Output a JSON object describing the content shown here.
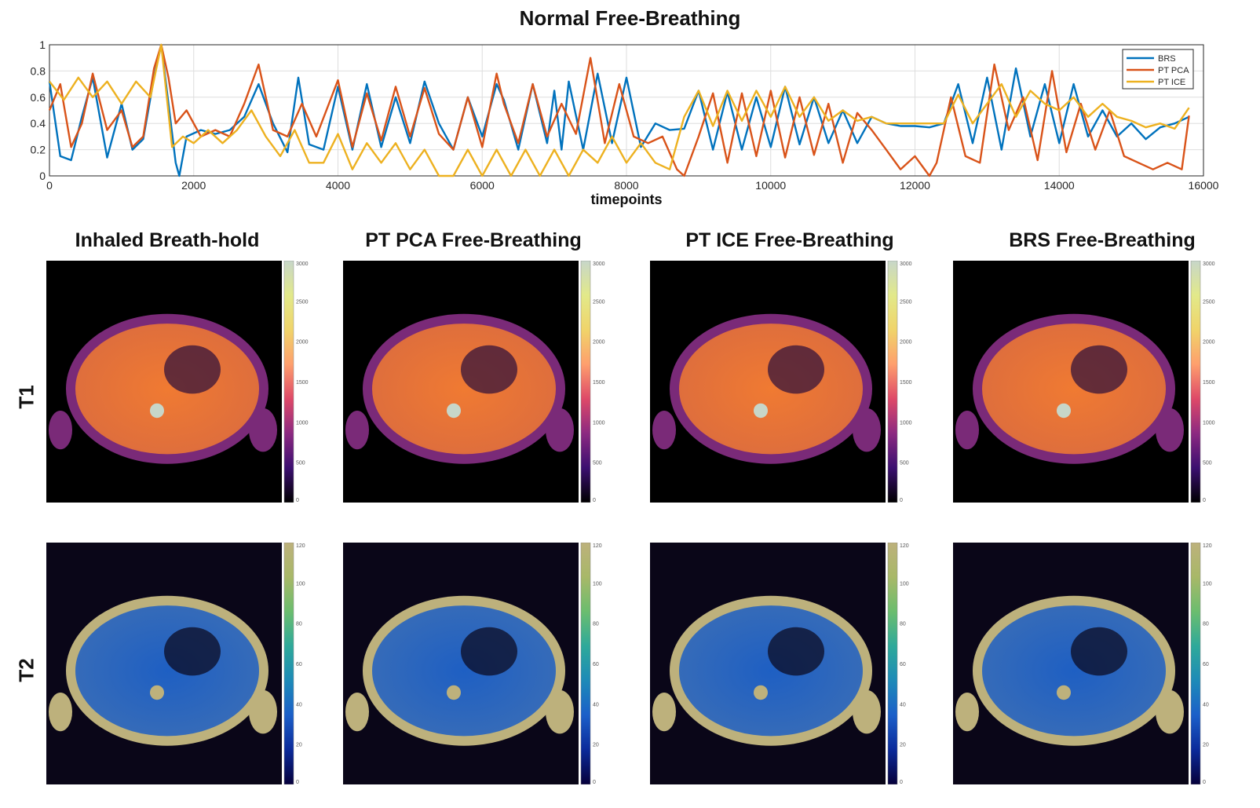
{
  "chart_data": [
    {
      "type": "line",
      "title": "Normal Free-Breathing",
      "xlabel": "timepoints",
      "ylabel": "",
      "xlim": [
        0,
        16000
      ],
      "ylim": [
        0,
        1
      ],
      "xticks": [
        "0",
        "2000",
        "4000",
        "6000",
        "8000",
        "10000",
        "12000",
        "14000",
        "16000"
      ],
      "yticks": [
        "0",
        "0.2",
        "0.4",
        "0.6",
        "0.8",
        "1"
      ],
      "grid": true,
      "legend_position": "top-right",
      "series": [
        {
          "name": "BRS",
          "color": "#0072BD",
          "x": [
            0,
            150,
            300,
            450,
            600,
            800,
            1000,
            1150,
            1300,
            1450,
            1550,
            1650,
            1750,
            1800,
            1900,
            2100,
            2300,
            2500,
            2700,
            2900,
            3100,
            3300,
            3450,
            3600,
            3800,
            4000,
            4200,
            4400,
            4600,
            4800,
            5000,
            5200,
            5400,
            5600,
            5800,
            6000,
            6200,
            6300,
            6500,
            6700,
            6900,
            7000,
            7100,
            7200,
            7400,
            7600,
            7800,
            8000,
            8200,
            8400,
            8600,
            8800,
            9000,
            9200,
            9400,
            9600,
            9800,
            10000,
            10200,
            10400,
            10600,
            10800,
            11000,
            11200,
            11400,
            11600,
            11800,
            12000,
            12200,
            12400,
            12600,
            12800,
            13000,
            13200,
            13400,
            13600,
            13800,
            14000,
            14200,
            14400,
            14600,
            14800,
            15000,
            15200,
            15400,
            15600,
            15800
          ],
          "y": [
            0.72,
            0.15,
            0.12,
            0.45,
            0.75,
            0.14,
            0.55,
            0.2,
            0.28,
            0.75,
            1.0,
            0.55,
            0.1,
            0.0,
            0.3,
            0.35,
            0.32,
            0.35,
            0.45,
            0.7,
            0.4,
            0.18,
            0.75,
            0.24,
            0.2,
            0.68,
            0.2,
            0.7,
            0.22,
            0.6,
            0.25,
            0.72,
            0.4,
            0.2,
            0.6,
            0.3,
            0.7,
            0.58,
            0.2,
            0.7,
            0.25,
            0.65,
            0.2,
            0.72,
            0.2,
            0.78,
            0.25,
            0.75,
            0.22,
            0.4,
            0.35,
            0.36,
            0.65,
            0.2,
            0.64,
            0.2,
            0.6,
            0.22,
            0.68,
            0.24,
            0.6,
            0.25,
            0.5,
            0.25,
            0.45,
            0.4,
            0.38,
            0.38,
            0.37,
            0.4,
            0.7,
            0.25,
            0.75,
            0.2,
            0.82,
            0.3,
            0.7,
            0.25,
            0.7,
            0.3,
            0.5,
            0.3,
            0.4,
            0.28,
            0.37,
            0.4,
            0.45
          ]
        },
        {
          "name": "PT PCA",
          "color": "#D95319",
          "x": [
            0,
            150,
            300,
            450,
            600,
            800,
            1000,
            1150,
            1300,
            1450,
            1550,
            1650,
            1750,
            1900,
            2100,
            2300,
            2500,
            2700,
            2900,
            3100,
            3300,
            3500,
            3700,
            4000,
            4200,
            4400,
            4600,
            4800,
            5000,
            5200,
            5400,
            5600,
            5800,
            6000,
            6200,
            6300,
            6500,
            6700,
            6900,
            7100,
            7300,
            7500,
            7700,
            7900,
            8100,
            8300,
            8500,
            8700,
            8800,
            9000,
            9200,
            9400,
            9600,
            9800,
            10000,
            10200,
            10400,
            10600,
            10800,
            11000,
            11200,
            11400,
            11600,
            11800,
            12000,
            12200,
            12300,
            12500,
            12700,
            12900,
            13100,
            13300,
            13500,
            13700,
            13900,
            14100,
            14300,
            14500,
            14700,
            14900,
            15100,
            15300,
            15500,
            15700,
            15800
          ],
          "y": [
            0.5,
            0.7,
            0.22,
            0.4,
            0.78,
            0.35,
            0.5,
            0.22,
            0.3,
            0.82,
            1.0,
            0.75,
            0.4,
            0.5,
            0.3,
            0.35,
            0.3,
            0.55,
            0.85,
            0.35,
            0.3,
            0.55,
            0.3,
            0.73,
            0.22,
            0.63,
            0.27,
            0.68,
            0.3,
            0.67,
            0.32,
            0.2,
            0.6,
            0.22,
            0.78,
            0.55,
            0.25,
            0.7,
            0.3,
            0.55,
            0.32,
            0.9,
            0.25,
            0.7,
            0.3,
            0.25,
            0.3,
            0.05,
            0.0,
            0.3,
            0.63,
            0.1,
            0.63,
            0.15,
            0.65,
            0.14,
            0.6,
            0.16,
            0.55,
            0.1,
            0.48,
            0.35,
            0.2,
            0.05,
            0.15,
            0.0,
            0.1,
            0.6,
            0.15,
            0.1,
            0.85,
            0.35,
            0.6,
            0.12,
            0.8,
            0.18,
            0.55,
            0.2,
            0.5,
            0.15,
            0.1,
            0.05,
            0.1,
            0.05,
            0.46
          ]
        },
        {
          "name": "PT ICE",
          "color": "#EDB120",
          "x": [
            0,
            200,
            400,
            600,
            800,
            1000,
            1200,
            1400,
            1550,
            1700,
            1850,
            2000,
            2200,
            2400,
            2600,
            2800,
            3000,
            3200,
            3400,
            3600,
            3800,
            4000,
            4200,
            4400,
            4600,
            4800,
            5000,
            5200,
            5400,
            5600,
            5800,
            6000,
            6200,
            6400,
            6600,
            6800,
            7000,
            7200,
            7400,
            7600,
            7800,
            8000,
            8200,
            8400,
            8600,
            8800,
            9000,
            9200,
            9400,
            9600,
            9800,
            10000,
            10200,
            10400,
            10600,
            10800,
            11000,
            11200,
            11400,
            11600,
            11800,
            12000,
            12200,
            12400,
            12600,
            12800,
            13000,
            13200,
            13400,
            13600,
            13800,
            14000,
            14200,
            14400,
            14600,
            14800,
            15000,
            15200,
            15400,
            15600,
            15800
          ],
          "y": [
            0.72,
            0.58,
            0.75,
            0.6,
            0.72,
            0.55,
            0.72,
            0.6,
            1.0,
            0.22,
            0.3,
            0.25,
            0.35,
            0.25,
            0.35,
            0.5,
            0.3,
            0.15,
            0.35,
            0.1,
            0.1,
            0.32,
            0.05,
            0.25,
            0.1,
            0.25,
            0.05,
            0.2,
            0.0,
            0.0,
            0.2,
            0.0,
            0.2,
            0.0,
            0.2,
            0.0,
            0.2,
            0.0,
            0.2,
            0.1,
            0.3,
            0.1,
            0.25,
            0.1,
            0.05,
            0.45,
            0.65,
            0.38,
            0.65,
            0.42,
            0.65,
            0.45,
            0.68,
            0.45,
            0.6,
            0.42,
            0.5,
            0.42,
            0.45,
            0.4,
            0.4,
            0.4,
            0.4,
            0.4,
            0.62,
            0.4,
            0.55,
            0.7,
            0.45,
            0.65,
            0.55,
            0.5,
            0.6,
            0.45,
            0.55,
            0.45,
            0.42,
            0.37,
            0.4,
            0.36,
            0.52
          ]
        }
      ]
    }
  ],
  "columns": [
    "Inhaled Breath-hold",
    "PT PCA Free-Breathing",
    "PT ICE Free-Breathing",
    "BRS Free-Breathing"
  ],
  "rows": [
    "T1",
    "T2"
  ],
  "t1_colorbar_ticks": [
    "0",
    "500",
    "1000",
    "1500",
    "2000",
    "2500",
    "3000"
  ],
  "t2_colorbar_ticks": [
    "0",
    "20",
    "40",
    "60",
    "80",
    "100",
    "120"
  ]
}
